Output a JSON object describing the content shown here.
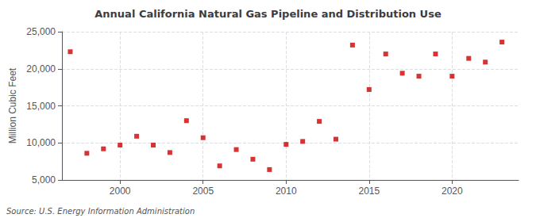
{
  "chart_data": {
    "type": "scatter",
    "title": "Annual California Natural Gas Pipeline and Distribution Use",
    "ylabel": "Million Cubic Feet",
    "source": "Source: U.S. Energy Information Administration",
    "x": [
      1997,
      1998,
      1999,
      2000,
      2001,
      2002,
      2003,
      2004,
      2005,
      2006,
      2007,
      2008,
      2009,
      2010,
      2011,
      2012,
      2013,
      2014,
      2015,
      2016,
      2017,
      2018,
      2019,
      2020,
      2021,
      2022,
      2023
    ],
    "values": [
      22300,
      8600,
      9200,
      9700,
      10900,
      9700,
      8700,
      13000,
      10700,
      6900,
      9100,
      7800,
      6400,
      9800,
      10200,
      12900,
      10500,
      23200,
      17200,
      22000,
      19400,
      19000,
      22000,
      19000,
      21400,
      20900,
      23600
    ],
    "color": "#cc0000",
    "marker": "square",
    "xlim": [
      1996.5,
      2024
    ],
    "xticks": [
      2000,
      2005,
      2010,
      2015,
      2020
    ],
    "ylim": [
      5000,
      25000
    ],
    "yticks": [
      {
        "value": 5000,
        "label": "5,000"
      },
      {
        "value": 10000,
        "label": "10,000"
      },
      {
        "value": 15000,
        "label": "15,000"
      },
      {
        "value": 20000,
        "label": "20,000"
      },
      {
        "value": 25000,
        "label": "25,000"
      }
    ],
    "grid": true
  }
}
